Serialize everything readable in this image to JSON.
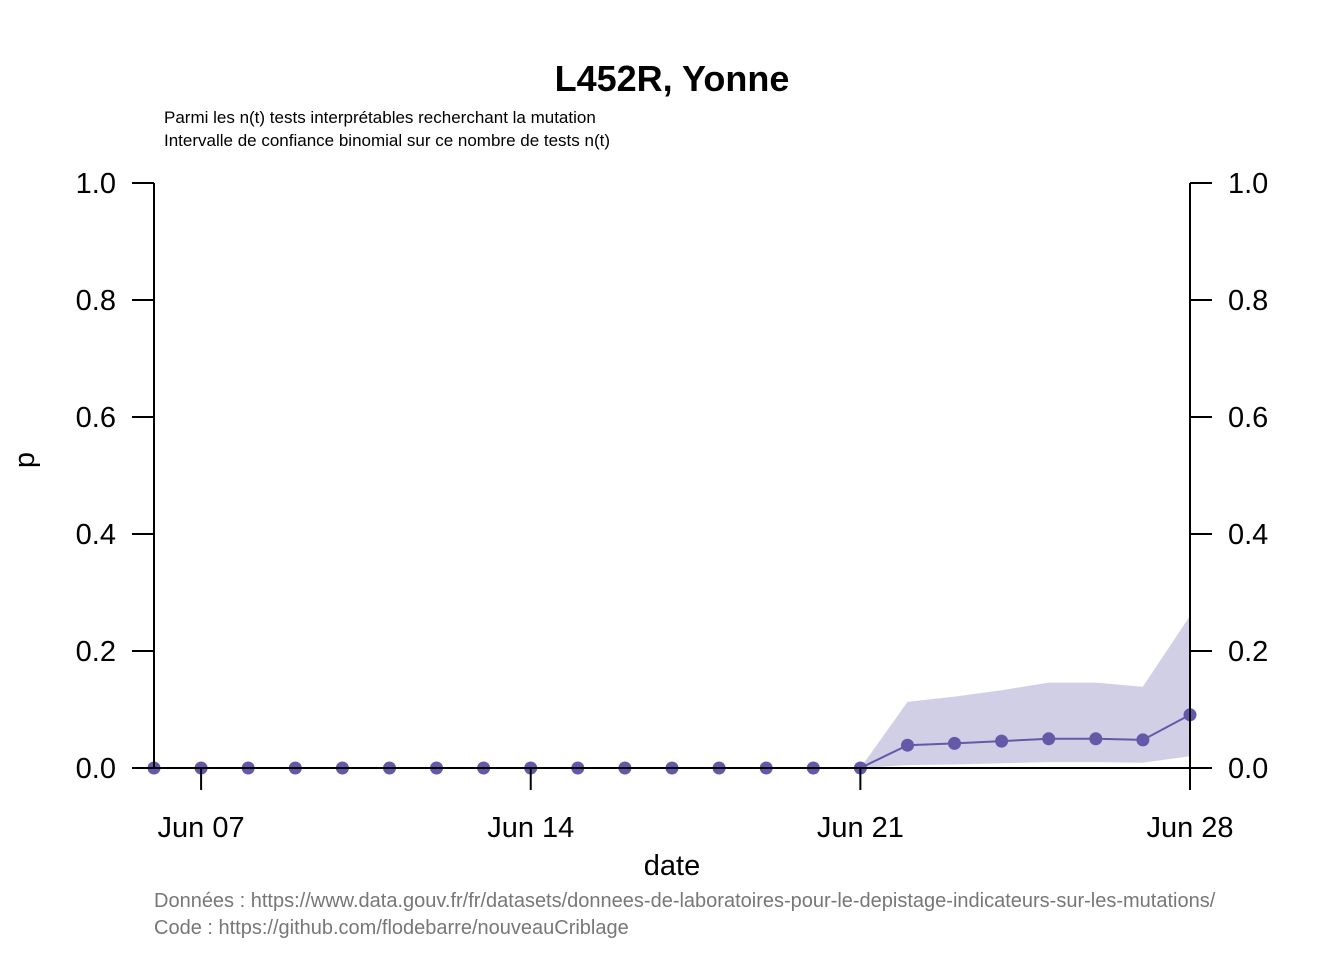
{
  "chart_data": {
    "type": "line",
    "title": "L452R, Yonne",
    "subtitle_lines": [
      "Parmi les n(t) tests interprétables recherchant la mutation",
      "Intervalle de confiance binomial sur ce nombre de tests n(t)"
    ],
    "xlabel": "date",
    "ylabel": "p",
    "ylim": [
      0,
      1
    ],
    "yticks": [
      "0.0",
      "0.2",
      "0.4",
      "0.6",
      "0.8",
      "1.0"
    ],
    "yticks_right": [
      "0.0",
      "0.2",
      "0.4",
      "0.6",
      "0.8",
      "1.0"
    ],
    "x_dates": [
      "2021-06-06",
      "2021-06-07",
      "2021-06-08",
      "2021-06-09",
      "2021-06-10",
      "2021-06-11",
      "2021-06-12",
      "2021-06-13",
      "2021-06-14",
      "2021-06-15",
      "2021-06-16",
      "2021-06-17",
      "2021-06-18",
      "2021-06-19",
      "2021-06-20",
      "2021-06-21",
      "2021-06-22",
      "2021-06-23",
      "2021-06-24",
      "2021-06-25",
      "2021-06-26",
      "2021-06-27",
      "2021-06-28"
    ],
    "xticks": [
      {
        "date": "2021-06-07",
        "label": "Jun 07"
      },
      {
        "date": "2021-06-14",
        "label": "Jun 14"
      },
      {
        "date": "2021-06-21",
        "label": "Jun 21"
      },
      {
        "date": "2021-06-28",
        "label": "Jun 28"
      }
    ],
    "series": [
      {
        "values": [
          0,
          0,
          0,
          0,
          0,
          0,
          0,
          0,
          0,
          0,
          0,
          0,
          0,
          0,
          0,
          0,
          0.039,
          0.042,
          0.046,
          0.05,
          0.05,
          0.048,
          0.091
        ],
        "ci_lower": [
          0,
          0,
          0,
          0,
          0,
          0,
          0,
          0,
          0,
          0,
          0,
          0,
          0,
          0,
          0,
          0,
          0.005,
          0.006,
          0.008,
          0.01,
          0.01,
          0.009,
          0.02
        ],
        "ci_upper": [
          0,
          0,
          0,
          0,
          0,
          0,
          0,
          0,
          0,
          0,
          0,
          0,
          0,
          0,
          0,
          0,
          0.113,
          0.122,
          0.133,
          0.146,
          0.146,
          0.139,
          0.26
        ],
        "color": "#6459a8",
        "band_color": "#d1cfe5"
      }
    ],
    "grid": false,
    "legend": "none"
  },
  "captions": {
    "data_source": "Données : https://www.data.gouv.fr/fr/datasets/donnees-de-laboratoires-pour-le-depistage-indicateurs-sur-les-mutations/",
    "code_source": "Code : https://github.com/flodebarre/nouveauCriblage"
  }
}
